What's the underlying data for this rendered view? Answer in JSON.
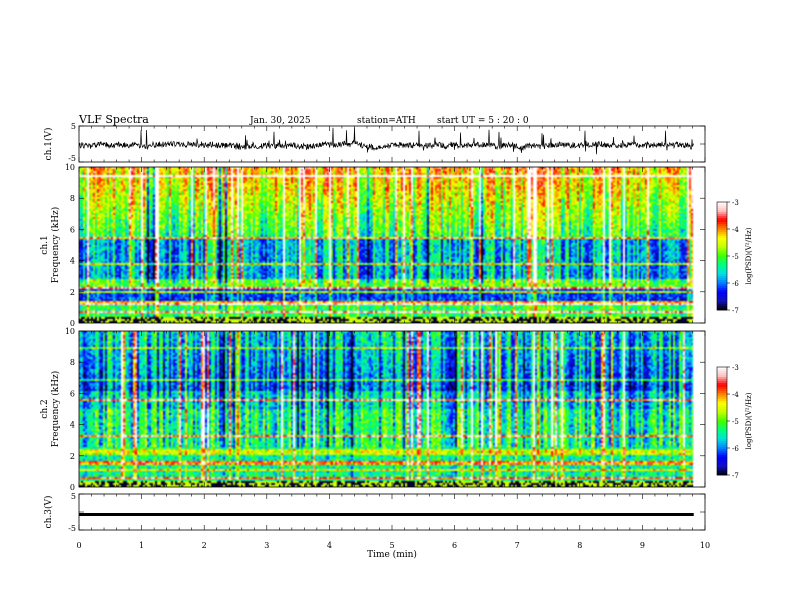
{
  "header": {
    "title": "VLF  Spectra",
    "date": "Jan. 30, 2025",
    "station": "station=ATH",
    "start": "start  UT  =    5  : 20 : 0"
  },
  "chart_data": [
    {
      "type": "line",
      "panel": "ch1-waveform",
      "ylabel": "ch.1(V)",
      "xlim": [
        0,
        10
      ],
      "ylim": [
        -5,
        5
      ],
      "yticks": [
        "5",
        "-5"
      ],
      "baseline": 0,
      "x_end_min": 9.82
    },
    {
      "type": "heatmap",
      "panel": "ch1-spectrogram",
      "channel_label": "ch.1",
      "ylabel": "Frequency  (kHz)",
      "xlim": [
        0,
        10
      ],
      "ylim": [
        0,
        10
      ],
      "yticks": [
        "0",
        "2",
        "4",
        "6",
        "8",
        "10"
      ],
      "x_end_min": 9.82,
      "colorbar": {
        "label": "log(PSD)(V²/Hz)",
        "range": [
          -7,
          -3
        ],
        "ticks": [
          "-3",
          "-4",
          "-5",
          "-6",
          "-7"
        ]
      }
    },
    {
      "type": "heatmap",
      "panel": "ch2-spectrogram",
      "channel_label": "ch.2",
      "ylabel": "Frequency  (kHz)",
      "xlim": [
        0,
        10
      ],
      "ylim": [
        0,
        10
      ],
      "yticks": [
        "0",
        "2",
        "4",
        "6",
        "8",
        "10"
      ],
      "x_end_min": 9.82,
      "colorbar": {
        "label": "log(PSD)(V²/Hz)",
        "range": [
          -7,
          -3
        ],
        "ticks": [
          "-3",
          "-4",
          "-5",
          "-6",
          "-7"
        ]
      }
    },
    {
      "type": "line",
      "panel": "ch3-waveform",
      "ylabel": "ch.3(V)",
      "xlabel": "Time  (min)",
      "xlim": [
        0,
        10
      ],
      "ylim": [
        -5,
        5
      ],
      "yticks": [
        "5",
        "-5"
      ],
      "xticks": [
        "0",
        "1",
        "2",
        "3",
        "4",
        "5",
        "6",
        "7",
        "8",
        "9",
        "10"
      ],
      "baseline": 0,
      "x_end_min": 9.82
    }
  ],
  "colors": {
    "colormap": [
      "#000000",
      "#1010c0",
      "#0000ff",
      "#0080ff",
      "#00e0e0",
      "#00ff80",
      "#40ff00",
      "#c0ff00",
      "#ffff00",
      "#ff8000",
      "#ff0000",
      "#ffc0c0",
      "#ffffff"
    ],
    "trace": "#000000"
  }
}
